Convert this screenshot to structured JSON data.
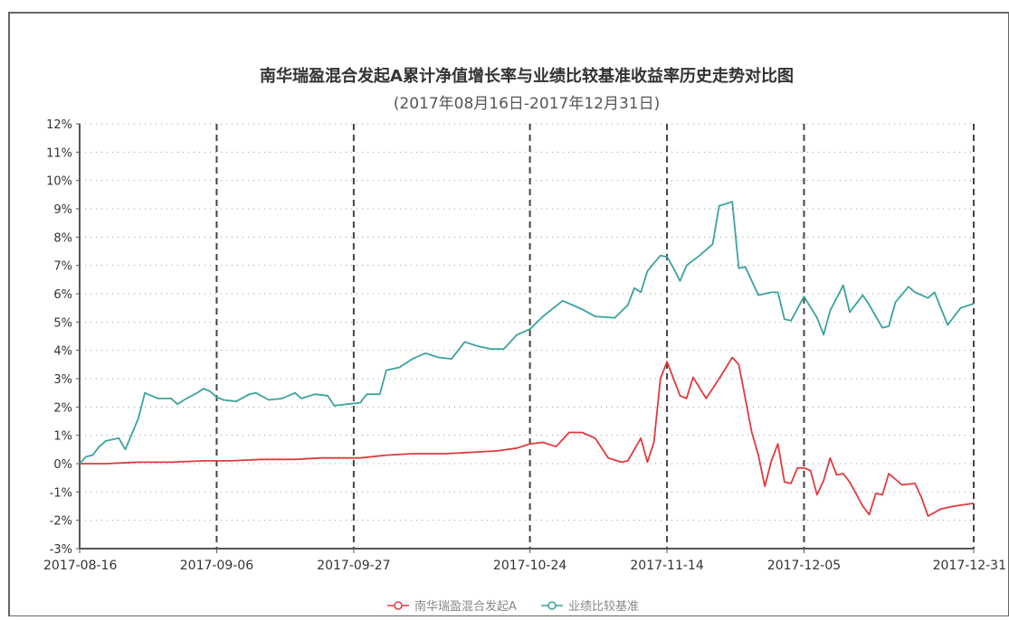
{
  "chart_data": {
    "type": "line",
    "title": "南华瑞盈混合发起A累计净值增长率与业绩比较基准收益率历史走势对比图",
    "subtitle": "(2017年08月16日-2017年12月31日)",
    "xlabel": "",
    "ylabel": "",
    "ylim": [
      -3,
      12
    ],
    "y_unit": "%",
    "y_ticks": [
      "-3%",
      "-2%",
      "-1%",
      "0%",
      "1%",
      "2%",
      "3%",
      "4%",
      "5%",
      "6%",
      "7%",
      "8%",
      "9%",
      "10%",
      "11%",
      "12%"
    ],
    "x_ticks": [
      "2017-08-16",
      "2017-09-06",
      "2017-09-27",
      "2017-10-24",
      "2017-11-14",
      "2017-12-05",
      "2017-12-31"
    ],
    "grid": true,
    "legend_position": "bottom",
    "colors": {
      "fund": "#e03a3e",
      "benchmark": "#3aa39d",
      "grid": "#999999",
      "axis": "#555555"
    },
    "series": [
      {
        "name": "南华瑞盈混合发起A",
        "color": "#e03a3e",
        "points": [
          [
            "2017-08-16",
            0.0
          ],
          [
            "2017-08-20",
            0.0
          ],
          [
            "2017-08-25",
            0.05
          ],
          [
            "2017-08-30",
            0.05
          ],
          [
            "2017-09-04",
            0.1
          ],
          [
            "2017-09-08",
            0.1
          ],
          [
            "2017-09-13",
            0.15
          ],
          [
            "2017-09-18",
            0.15
          ],
          [
            "2017-09-22",
            0.2
          ],
          [
            "2017-09-25",
            0.2
          ],
          [
            "2017-09-28",
            0.2
          ],
          [
            "2017-10-02",
            0.3
          ],
          [
            "2017-10-06",
            0.35
          ],
          [
            "2017-10-11",
            0.35
          ],
          [
            "2017-10-15",
            0.4
          ],
          [
            "2017-10-19",
            0.45
          ],
          [
            "2017-10-22",
            0.55
          ],
          [
            "2017-10-24",
            0.7
          ],
          [
            "2017-10-26",
            0.75
          ],
          [
            "2017-10-28",
            0.6
          ],
          [
            "2017-10-30",
            1.1
          ],
          [
            "2017-11-01",
            1.1
          ],
          [
            "2017-11-03",
            0.9
          ],
          [
            "2017-11-05",
            0.2
          ],
          [
            "2017-11-07",
            0.05
          ],
          [
            "2017-11-08",
            0.1
          ],
          [
            "2017-11-09",
            0.5
          ],
          [
            "2017-11-10",
            0.9
          ],
          [
            "2017-11-11",
            0.05
          ],
          [
            "2017-11-12",
            0.75
          ],
          [
            "2017-11-13",
            3.0
          ],
          [
            "2017-11-14",
            3.6
          ],
          [
            "2017-11-15",
            3.0
          ],
          [
            "2017-11-16",
            2.4
          ],
          [
            "2017-11-17",
            2.3
          ],
          [
            "2017-11-18",
            3.05
          ],
          [
            "2017-11-20",
            2.3
          ],
          [
            "2017-11-22",
            3.0
          ],
          [
            "2017-11-24",
            3.75
          ],
          [
            "2017-11-25",
            3.5
          ],
          [
            "2017-11-27",
            1.1
          ],
          [
            "2017-11-28",
            0.3
          ],
          [
            "2017-11-29",
            -0.8
          ],
          [
            "2017-11-30",
            0.1
          ],
          [
            "2017-12-01",
            0.7
          ],
          [
            "2017-12-02",
            -0.65
          ],
          [
            "2017-12-03",
            -0.7
          ],
          [
            "2017-12-04",
            -0.15
          ],
          [
            "2017-12-05",
            -0.15
          ],
          [
            "2017-12-06",
            -0.25
          ],
          [
            "2017-12-07",
            -1.1
          ],
          [
            "2017-12-08",
            -0.6
          ],
          [
            "2017-12-09",
            0.2
          ],
          [
            "2017-12-10",
            -0.4
          ],
          [
            "2017-12-11",
            -0.35
          ],
          [
            "2017-12-12",
            -0.65
          ],
          [
            "2017-12-14",
            -1.5
          ],
          [
            "2017-12-15",
            -1.8
          ],
          [
            "2017-12-16",
            -1.05
          ],
          [
            "2017-12-17",
            -1.1
          ],
          [
            "2017-12-18",
            -0.35
          ],
          [
            "2017-12-20",
            -0.75
          ],
          [
            "2017-12-22",
            -0.7
          ],
          [
            "2017-12-23",
            -1.2
          ],
          [
            "2017-12-24",
            -1.85
          ],
          [
            "2017-12-26",
            -1.6
          ],
          [
            "2017-12-28",
            -1.5
          ],
          [
            "2017-12-31",
            -1.4
          ]
        ]
      },
      {
        "name": "业绩比较基准",
        "color": "#3aa39d",
        "points": [
          [
            "2017-08-16",
            0.0
          ],
          [
            "2017-08-17",
            0.25
          ],
          [
            "2017-08-18",
            0.3
          ],
          [
            "2017-08-19",
            0.6
          ],
          [
            "2017-08-20",
            0.8
          ],
          [
            "2017-08-22",
            0.9
          ],
          [
            "2017-08-23",
            0.5
          ],
          [
            "2017-08-25",
            1.6
          ],
          [
            "2017-08-26",
            2.5
          ],
          [
            "2017-08-28",
            2.3
          ],
          [
            "2017-08-30",
            2.3
          ],
          [
            "2017-08-31",
            2.1
          ],
          [
            "2017-09-01",
            2.25
          ],
          [
            "2017-09-03",
            2.5
          ],
          [
            "2017-09-04",
            2.65
          ],
          [
            "2017-09-05",
            2.55
          ],
          [
            "2017-09-06",
            2.35
          ],
          [
            "2017-09-07",
            2.25
          ],
          [
            "2017-09-09",
            2.2
          ],
          [
            "2017-09-11",
            2.45
          ],
          [
            "2017-09-12",
            2.5
          ],
          [
            "2017-09-14",
            2.25
          ],
          [
            "2017-09-16",
            2.3
          ],
          [
            "2017-09-18",
            2.5
          ],
          [
            "2017-09-19",
            2.3
          ],
          [
            "2017-09-21",
            2.45
          ],
          [
            "2017-09-23",
            2.4
          ],
          [
            "2017-09-24",
            2.05
          ],
          [
            "2017-09-26",
            2.1
          ],
          [
            "2017-09-28",
            2.15
          ],
          [
            "2017-09-29",
            2.45
          ],
          [
            "2017-10-01",
            2.45
          ],
          [
            "2017-10-02",
            3.3
          ],
          [
            "2017-10-04",
            3.4
          ],
          [
            "2017-10-06",
            3.7
          ],
          [
            "2017-10-08",
            3.9
          ],
          [
            "2017-10-10",
            3.75
          ],
          [
            "2017-10-12",
            3.7
          ],
          [
            "2017-10-14",
            4.3
          ],
          [
            "2017-10-16",
            4.15
          ],
          [
            "2017-10-18",
            4.05
          ],
          [
            "2017-10-20",
            4.05
          ],
          [
            "2017-10-22",
            4.55
          ],
          [
            "2017-10-24",
            4.75
          ],
          [
            "2017-10-26",
            5.2
          ],
          [
            "2017-10-29",
            5.75
          ],
          [
            "2017-11-01",
            5.45
          ],
          [
            "2017-11-03",
            5.2
          ],
          [
            "2017-11-06",
            5.15
          ],
          [
            "2017-11-08",
            5.6
          ],
          [
            "2017-11-09",
            6.2
          ],
          [
            "2017-11-10",
            6.05
          ],
          [
            "2017-11-11",
            6.8
          ],
          [
            "2017-11-13",
            7.35
          ],
          [
            "2017-11-14",
            7.3
          ],
          [
            "2017-11-15",
            6.9
          ],
          [
            "2017-11-16",
            6.45
          ],
          [
            "2017-11-17",
            7.0
          ],
          [
            "2017-11-19",
            7.35
          ],
          [
            "2017-11-21",
            7.75
          ],
          [
            "2017-11-22",
            9.1
          ],
          [
            "2017-11-24",
            9.25
          ],
          [
            "2017-11-25",
            6.9
          ],
          [
            "2017-11-26",
            6.95
          ],
          [
            "2017-11-28",
            5.95
          ],
          [
            "2017-11-30",
            6.05
          ],
          [
            "2017-12-01",
            6.05
          ],
          [
            "2017-12-02",
            5.1
          ],
          [
            "2017-12-03",
            5.05
          ],
          [
            "2017-12-05",
            5.9
          ],
          [
            "2017-12-07",
            5.15
          ],
          [
            "2017-12-08",
            4.55
          ],
          [
            "2017-12-09",
            5.4
          ],
          [
            "2017-12-11",
            6.3
          ],
          [
            "2017-12-12",
            5.35
          ],
          [
            "2017-12-14",
            5.95
          ],
          [
            "2017-12-15",
            5.6
          ],
          [
            "2017-12-17",
            4.8
          ],
          [
            "2017-12-18",
            4.85
          ],
          [
            "2017-12-19",
            5.7
          ],
          [
            "2017-12-21",
            6.25
          ],
          [
            "2017-12-22",
            6.05
          ],
          [
            "2017-12-24",
            5.85
          ],
          [
            "2017-12-25",
            6.05
          ],
          [
            "2017-12-27",
            4.9
          ],
          [
            "2017-12-29",
            5.5
          ],
          [
            "2017-12-31",
            5.65
          ]
        ]
      }
    ]
  }
}
